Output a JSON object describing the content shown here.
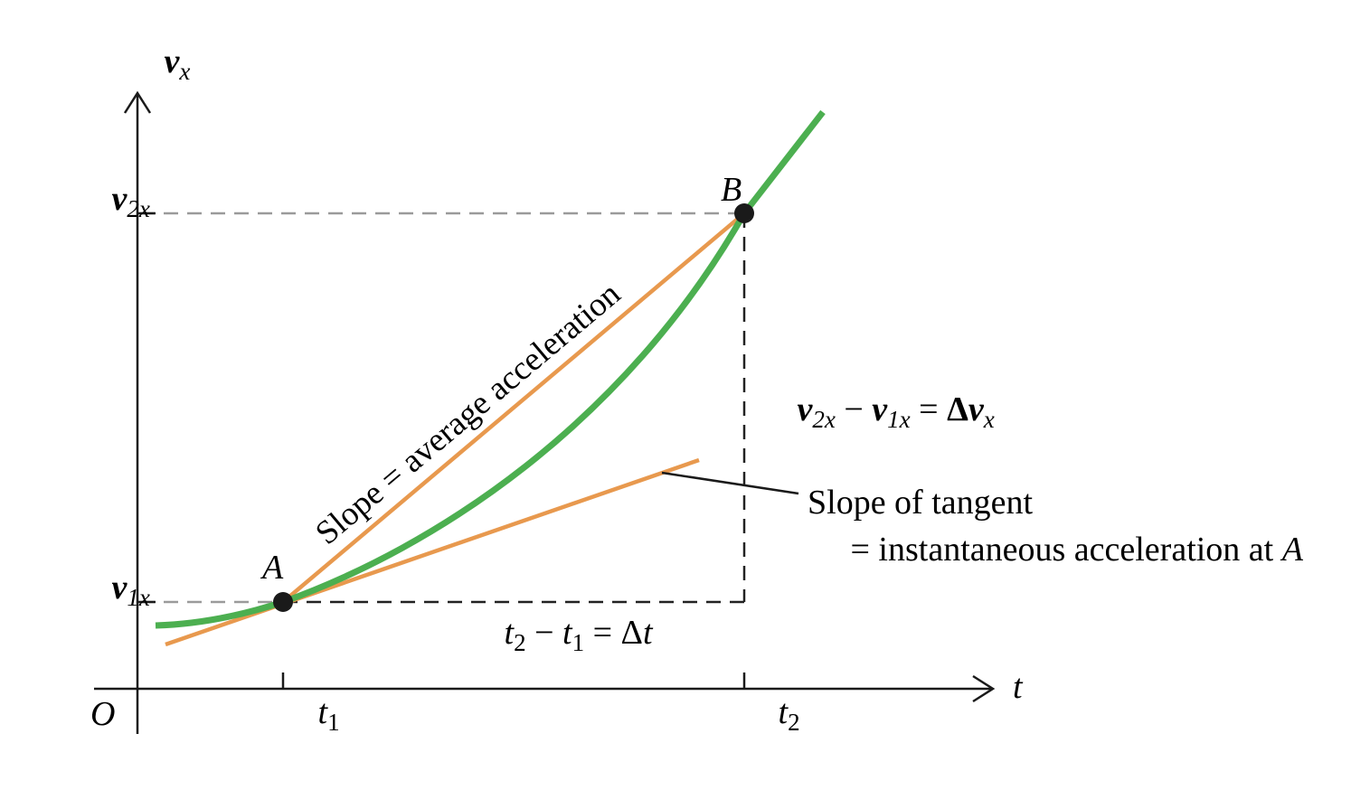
{
  "axes": {
    "y_axis_var": "v",
    "y_axis_sub": "x",
    "x_axis_label": "t",
    "origin_label": "O"
  },
  "y_ticks": {
    "v2x": {
      "var": "v",
      "sub": "2x"
    },
    "v1x": {
      "var": "v",
      "sub": "1x"
    }
  },
  "x_ticks": {
    "t1": {
      "var": "t",
      "sub": "1"
    },
    "t2": {
      "var": "t",
      "sub": "2"
    }
  },
  "points": {
    "A": "A",
    "B": "B"
  },
  "annotations": {
    "secant": "Slope = average acceleration",
    "delta_v": {
      "v": "v",
      "sub2": "2x",
      "minus": " − ",
      "sub1": "1x",
      "equals": " = ",
      "delta": "Δ",
      "subx": "x"
    },
    "delta_t": {
      "t": "t",
      "sub2": "2",
      "minus": " − ",
      "sub1": "1",
      "equals": " = Δ",
      "tail": "t"
    },
    "tangent_line1": "Slope of tangent",
    "tangent_line2_prefix": "= instantaneous acceleration at ",
    "tangent_line2_point": "A"
  },
  "colors": {
    "curve": "#4caf50",
    "secant": "#e8994e",
    "tangent": "#e8994e",
    "axis": "#1a1a1a",
    "dashed_gray": "#9a9a9a",
    "dashed_dark": "#222222",
    "point": "#1a1a1a"
  }
}
